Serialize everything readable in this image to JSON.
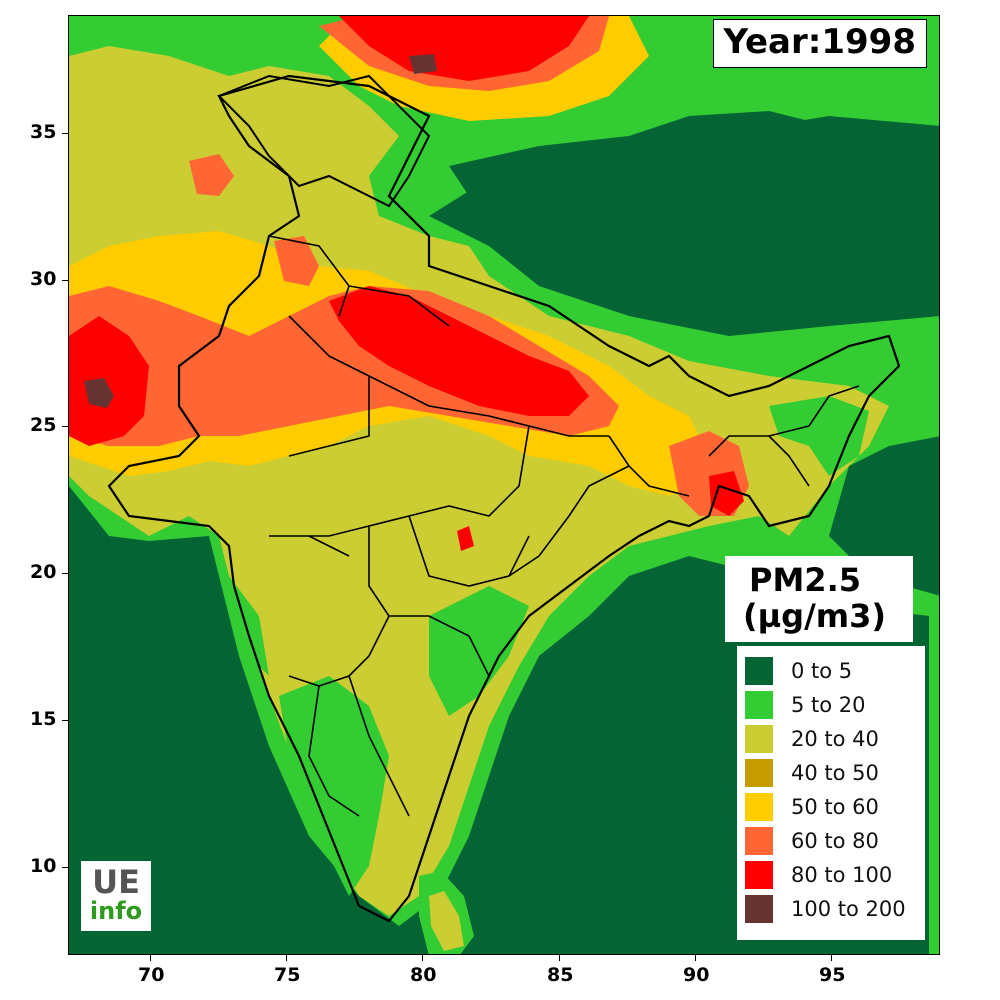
{
  "map": {
    "year_label": "Year:1998",
    "x_ticks": [
      "70",
      "75",
      "80",
      "85",
      "90",
      "95"
    ],
    "y_ticks": [
      "35",
      "30",
      "25",
      "20",
      "15",
      "10"
    ],
    "lon_range": [
      67,
      99
    ],
    "lat_range": [
      7,
      39
    ],
    "x_tick_values": [
      70,
      75,
      80,
      85,
      90,
      95
    ],
    "y_tick_values": [
      35,
      30,
      25,
      20,
      15,
      10
    ]
  },
  "legend": {
    "title_line1": "PM2.5",
    "title_line2": "(µg/m3)",
    "items": [
      {
        "label": "0  to  5",
        "color": "#046434"
      },
      {
        "label": "5  to  20",
        "color": "#33cc33"
      },
      {
        "label": "20  to  40",
        "color": "#cccc33"
      },
      {
        "label": "40  to  50",
        "color": "#c49c00"
      },
      {
        "label": "50  to  60",
        "color": "#ffcc00"
      },
      {
        "label": "60  to  80",
        "color": "#ff6633"
      },
      {
        "label": "80  to  100",
        "color": "#ff0000"
      },
      {
        "label": "100  to  200",
        "color": "#663333"
      }
    ]
  },
  "logo": {
    "line1": "UE",
    "line2": "info"
  }
}
